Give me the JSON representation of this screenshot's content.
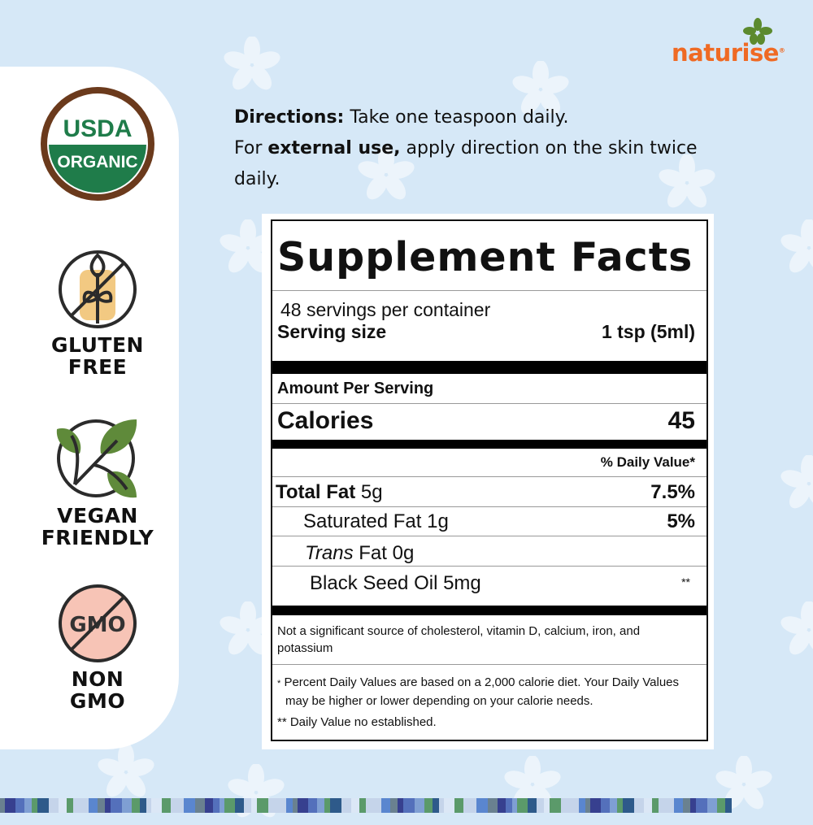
{
  "brand": {
    "name": "naturise",
    "accent": "#ef6a24",
    "leaf_color": "#5c8a2e"
  },
  "badges": [
    {
      "icon": "usda-organic-seal-icon",
      "top": "USDA",
      "bottom": "ORGANIC"
    },
    {
      "icon": "gluten-free-icon",
      "line1": "GLUTEN",
      "line2": "FREE"
    },
    {
      "icon": "vegan-leaf-icon",
      "line1": "VEGAN",
      "line2": "FRIENDLY"
    },
    {
      "icon": "non-gmo-icon",
      "glyph": "GMO",
      "line1": "NON",
      "line2": "GMO"
    }
  ],
  "directions": {
    "label": "Directions:",
    "text1": " Take one teaspoon daily.",
    "prefix": "For ",
    "bold": "external use,",
    "text2": " apply direction on the skin twice daily."
  },
  "facts": {
    "title": "Supplement Facts",
    "servings": "48 servings per container",
    "serving_size_label": "Serving size",
    "serving_size_value": "1 tsp (5ml)",
    "amount_per_serving": "Amount Per Serving",
    "calories_label": "Calories",
    "calories_value": "45",
    "dv_header": "% Daily Value*",
    "rows": [
      {
        "name": "Total Fat",
        "amount": "5g",
        "dv": "7.5%"
      },
      {
        "name": "Saturated Fat",
        "amount": "1g",
        "dv": "5%"
      },
      {
        "name_italic": "Trans",
        "name": "Fat",
        "amount": "0g",
        "dv": ""
      },
      {
        "name": "Black Seed Oil",
        "amount": "5mg",
        "dv": "**"
      }
    ],
    "note1": "Not a significant source of cholesterol, vitamin D, calcium, iron, and potassium",
    "note2_mark": "*",
    "note2": "Percent Daily Values are based on a 2,000 calorie diet. Your Daily Values may be higher or lower depending on your calorie needs.",
    "note3": "** Daily Value no established."
  },
  "stripe_colors": [
    "#6a8190",
    "#2e5a8a",
    "#c5d4ea",
    "#7f9fd3",
    "#5b9a6a",
    "#37408f",
    "#c5d4ea",
    "#5a86cf",
    "#5b9a6a",
    "#c5d4ea",
    "#5470bb",
    "#dbe7f6"
  ]
}
